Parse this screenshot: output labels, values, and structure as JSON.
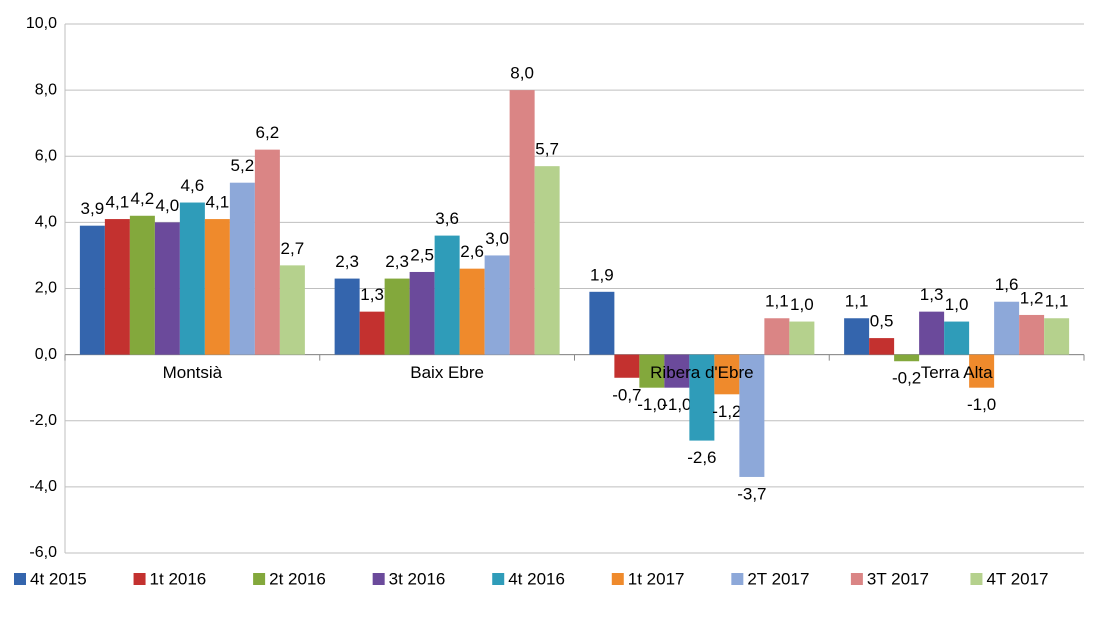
{
  "chart_data": {
    "type": "bar",
    "categories": [
      "Montsià",
      "Baix Ebre",
      "Ribera d'Ebre",
      "Terra Alta"
    ],
    "series": [
      {
        "name": "4t 2015",
        "color": "#3465ad",
        "values": [
          3.9,
          2.3,
          1.9,
          1.1
        ],
        "value_labels": [
          "3,9",
          "2,3",
          "1,9",
          "1,1"
        ]
      },
      {
        "name": "1t 2016",
        "color": "#c3312f",
        "values": [
          4.1,
          1.3,
          -0.7,
          0.5
        ],
        "value_labels": [
          "4,1",
          "1,3",
          "-0,7",
          "0,5"
        ]
      },
      {
        "name": "2t 2016",
        "color": "#83a83c",
        "values": [
          4.2,
          2.3,
          -1.0,
          -0.2
        ],
        "value_labels": [
          "4,2",
          "2,3",
          "-1,0",
          "-0,2"
        ]
      },
      {
        "name": "3t 2016",
        "color": "#6b4a9b",
        "values": [
          4.0,
          2.5,
          -1.0,
          1.3
        ],
        "value_labels": [
          "4,0",
          "2,5",
          "-1,0",
          "1,3"
        ]
      },
      {
        "name": "4t 2016",
        "color": "#2f9cb9",
        "values": [
          4.6,
          3.6,
          -2.6,
          1.0
        ],
        "value_labels": [
          "4,6",
          "3,6",
          "-2,6",
          "1,0"
        ]
      },
      {
        "name": "1t 2017",
        "color": "#ef8a2c",
        "values": [
          4.1,
          2.6,
          -1.2,
          -1.0
        ],
        "value_labels": [
          "4,1",
          "2,6",
          "-1,2",
          "-1,0"
        ]
      },
      {
        "name": "2T 2017",
        "color": "#8da8d9",
        "values": [
          5.2,
          3.0,
          -3.7,
          1.6
        ],
        "value_labels": [
          "5,2",
          "3,0",
          "-3,7",
          "1,6"
        ]
      },
      {
        "name": "3T 2017",
        "color": "#da8585",
        "values": [
          6.2,
          8.0,
          1.1,
          1.2
        ],
        "value_labels": [
          "6,2",
          "8,0",
          "1,1",
          "1,2"
        ]
      },
      {
        "name": "4T 2017",
        "color": "#b5d18d",
        "values": [
          2.7,
          5.7,
          1.0,
          1.1
        ],
        "value_labels": [
          "2,7",
          "5,7",
          "1,0",
          "1,1"
        ]
      }
    ],
    "ylim": [
      -6,
      10
    ],
    "yticks": [
      {
        "value": -6,
        "label": "-6,0"
      },
      {
        "value": -4,
        "label": "-4,0"
      },
      {
        "value": -2,
        "label": "-2,0"
      },
      {
        "value": 0,
        "label": "0,0"
      },
      {
        "value": 2,
        "label": "2,0"
      },
      {
        "value": 4,
        "label": "4,0"
      },
      {
        "value": 6,
        "label": "6,0"
      },
      {
        "value": 8,
        "label": "8,0"
      },
      {
        "value": 10,
        "label": "10,0"
      }
    ],
    "grid": true,
    "legend": "bottom"
  }
}
